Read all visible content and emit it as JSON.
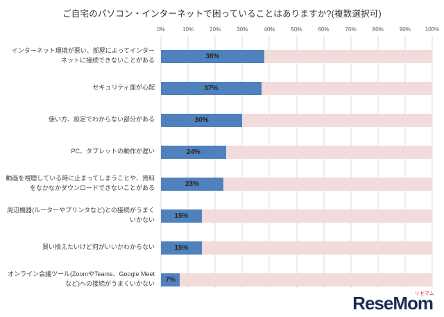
{
  "chart_data": {
    "type": "bar",
    "orientation": "horizontal",
    "title": "ご自宅のパソコン・インターネットで困っていることはありますか?(複数選択可)",
    "categories": [
      "インターネット環境が悪い、部屋によってインターネットに接続できないことがある",
      "セキュリティ面が心配",
      "使い方、設定でわからない部分がある",
      "PC、タブレットの動作が遅い",
      "動画を視聴している時に止まってしまうことや、資料をなかなかダウンロードできないことがある",
      "周辺機器(ルーターやプリンタなど)との接続がうまくいかない",
      "買い換えたいけど何がいいかわからない",
      "オンライン会議ツール(ZoomやTeams、Google Meetなど)への接続がうまくいかない"
    ],
    "values": [
      38,
      37,
      30,
      24,
      23,
      15,
      15,
      7
    ],
    "value_labels": [
      "38%",
      "37%",
      "30%",
      "24%",
      "23%",
      "15%",
      "15%",
      "7%"
    ],
    "xlim": [
      0,
      100
    ],
    "x_ticks": [
      "0%",
      "10%",
      "20%",
      "30%",
      "40%",
      "50%",
      "60%",
      "70%",
      "80%",
      "90%",
      "100%"
    ],
    "grid": true,
    "legend": "none",
    "bar_color": "#4f81bd",
    "track_color": "#f2dcdb"
  },
  "logo": {
    "text": "ReseMom",
    "ruby": "リセマム",
    "color": "#1c2d55",
    "ruby_color": "#e60012"
  }
}
